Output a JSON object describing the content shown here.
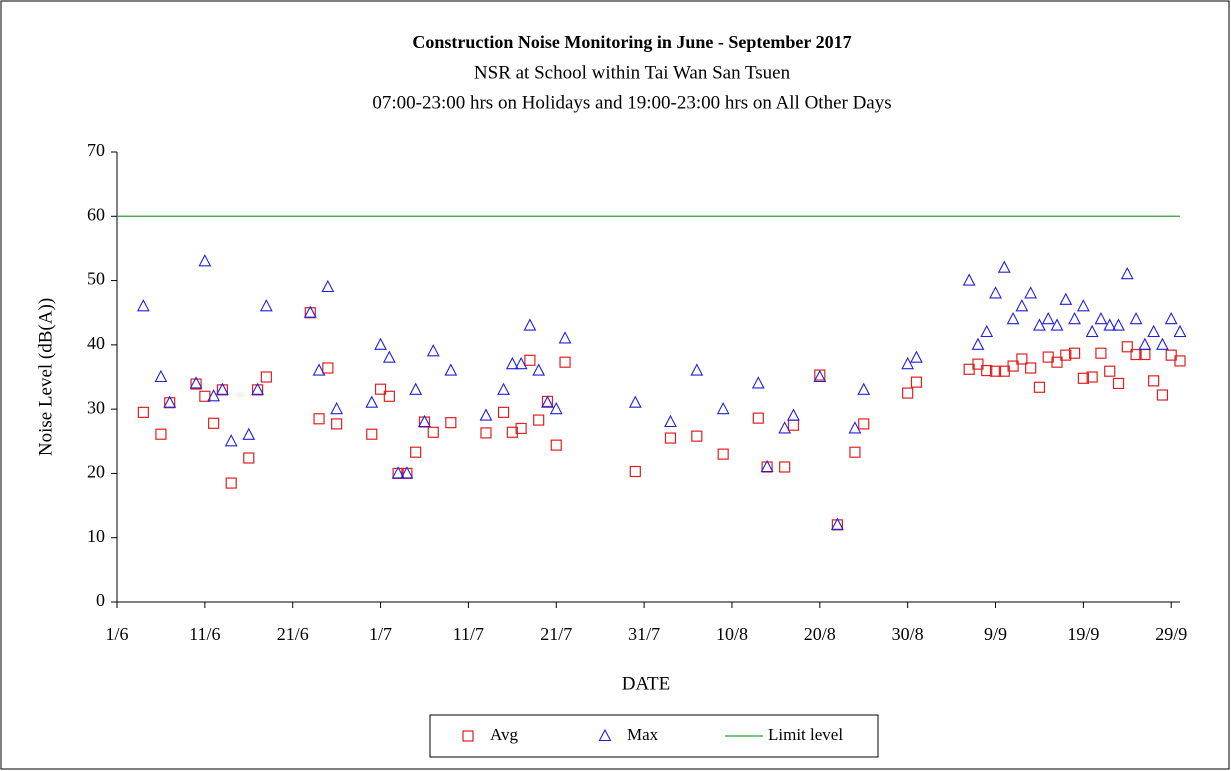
{
  "chart_data": {
    "type": "scatter",
    "title": "Construction Noise Monitoring in June - September 2017",
    "subtitle": [
      "NSR at School within Tai Wan San Tsuen",
      "07:00-23:00 hrs on Holidays and 19:00-23:00 hrs on All Other Days"
    ],
    "xlabel": "DATE",
    "ylabel": "Noise Level (dB(A))",
    "x": [
      "4/6",
      "6/6",
      "7/6",
      "10/6",
      "11/6",
      "12/6",
      "13/6",
      "14/6",
      "16/6",
      "17/6",
      "18/6",
      "23/6",
      "24/6",
      "25/6",
      "26/6",
      "30/6",
      "1/7",
      "2/7",
      "3/7",
      "4/7",
      "5/7",
      "6/7",
      "7/7",
      "9/7",
      "13/7",
      "15/7",
      "16/7",
      "17/7",
      "18/7",
      "19/7",
      "20/7",
      "21/7",
      "22/7",
      "30/7",
      "3/8",
      "6/8",
      "9/8",
      "13/8",
      "14/8",
      "16/8",
      "17/8",
      "20/8",
      "22/8",
      "24/8",
      "25/8",
      "30/8",
      "31/8",
      "6/9",
      "7/9",
      "8/9",
      "9/9",
      "10/9",
      "11/9",
      "12/9",
      "13/9",
      "14/9",
      "15/9",
      "16/9",
      "17/9",
      "18/9",
      "19/9",
      "20/9",
      "21/9",
      "22/9",
      "23/9",
      "24/9",
      "25/9",
      "26/9",
      "27/9",
      "28/9",
      "29/9",
      "30/9"
    ],
    "series": [
      {
        "name": "Avg",
        "color": "#e02020",
        "marker": "square",
        "values": [
          29.5,
          26.1,
          31,
          33.9,
          32,
          27.8,
          33,
          18.5,
          22.4,
          33,
          35,
          45,
          28.5,
          36.4,
          27.7,
          26.1,
          33.1,
          32,
          20,
          20,
          23.3,
          28,
          26.4,
          27.9,
          26.3,
          29.5,
          26.4,
          27,
          37.6,
          28.3,
          31.2,
          24.4,
          37.3,
          20.3,
          25.5,
          25.8,
          23,
          28.6,
          21,
          21,
          27.5,
          35.3,
          12,
          23.3,
          27.7,
          32.5,
          34.2,
          36.2,
          37,
          36,
          35.9,
          35.9,
          36.7,
          37.8,
          36.4,
          33.4,
          38.1,
          37.3,
          38.4,
          38.7,
          34.8,
          35,
          38.7,
          35.9,
          34,
          39.7,
          38.5,
          38.5,
          34.4,
          32.2,
          38.4,
          37.5
        ]
      },
      {
        "name": "Max",
        "color": "#2020e0",
        "marker": "triangle",
        "values": [
          46,
          35,
          31,
          34,
          53,
          32,
          33,
          25,
          26,
          33,
          46,
          45,
          36,
          49,
          30,
          31,
          40,
          38,
          20,
          20,
          33,
          28,
          39,
          36,
          29,
          33,
          37,
          37,
          43,
          36,
          31,
          30,
          41,
          31,
          28,
          36,
          30,
          34,
          21,
          27,
          29,
          35,
          12,
          27,
          33,
          37,
          38,
          50,
          40,
          42,
          48,
          52,
          44,
          46,
          48,
          43,
          44,
          43,
          47,
          44,
          46,
          42,
          44,
          43,
          43,
          51,
          44,
          40,
          42,
          40,
          44,
          42
        ]
      }
    ],
    "limit_line": {
      "name": "Limit level",
      "value": 60,
      "color": "#2e9e3e"
    },
    "xlim": [
      "1/6",
      "30/9"
    ],
    "xticks": [
      "1/6",
      "11/6",
      "21/6",
      "1/7",
      "11/7",
      "21/7",
      "31/7",
      "10/8",
      "20/8",
      "30/8",
      "9/9",
      "19/9",
      "29/9"
    ],
    "ylim": [
      0,
      70
    ],
    "yticks": [
      0,
      10,
      20,
      30,
      40,
      50,
      60,
      70
    ],
    "legend": "bottom"
  }
}
